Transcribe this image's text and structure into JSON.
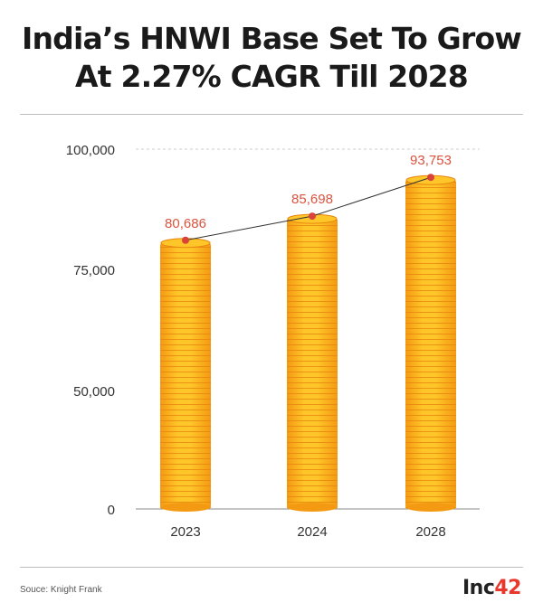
{
  "header": {
    "title_line1": "India’s HNWI Base Set To Grow",
    "title_line2": "At 2.27% CAGR Till 2028"
  },
  "footer": {
    "source": "Souce: Knight Frank",
    "logo_text": "Inc",
    "logo_accent": "42"
  },
  "colors": {
    "coin_light": "#ffc629",
    "coin_dark": "#f39a12",
    "coin_edge": "#e8850f",
    "label": "#d9533f",
    "marker": "#d9433a",
    "logo_accent": "#e8372c"
  },
  "chart_data": {
    "type": "bar",
    "title": "India’s HNWI Base Set To Grow At 2.27% CAGR Till 2028",
    "categories": [
      "2023",
      "2024",
      "2028"
    ],
    "values": [
      80686,
      85698,
      93753
    ],
    "value_labels": [
      "80,686",
      "85,698",
      "93,753"
    ],
    "yticks": [
      0,
      50000,
      75000,
      100000
    ],
    "ytick_labels": [
      "0",
      "50,000",
      "75,000",
      "100,000"
    ],
    "ylim": [
      0,
      100000
    ],
    "y_scale": "broken (0 to 50,000 compressed)",
    "trend_line": true,
    "grid": "dashed line at 100,000"
  }
}
